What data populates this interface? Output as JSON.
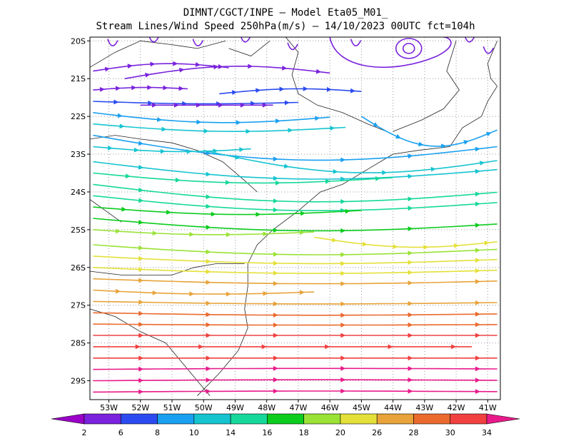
{
  "title": {
    "line1": "DIMNT/CGCT/INPE –  Model Eta05_M01_",
    "line2": "Stream Lines/Wind Speed 250hPa(m/s) –  14/10/2023 00UTC fct=104h"
  },
  "map": {
    "lon_range": [
      -53.6,
      -40.6
    ],
    "lat_range": [
      -29.5,
      -19.9
    ],
    "grid": "dotted",
    "x_ticks": [
      "53W",
      "52W",
      "51W",
      "50W",
      "49W",
      "48W",
      "47W",
      "46W",
      "45W",
      "44W",
      "43W",
      "42W",
      "41W"
    ],
    "y_ticks": [
      "20S",
      "21S",
      "22S",
      "23S",
      "24S",
      "25S",
      "26S",
      "27S",
      "28S",
      "29S"
    ]
  },
  "colorbar": {
    "labels": [
      "2",
      "6",
      "8",
      "10",
      "14",
      "16",
      "18",
      "20",
      "26",
      "28",
      "30",
      "34"
    ],
    "colors": [
      "#9a00c8",
      "#7a22dd",
      "#2b4bf0",
      "#1aa0f0",
      "#16c4d0",
      "#16d89a",
      "#0ccc1e",
      "#9ae236",
      "#e4e03a",
      "#e8a33a",
      "#ea6a2e",
      "#f04040",
      "#e81a8a"
    ]
  },
  "streamlines": [
    {
      "lat": -20.8,
      "lon0": -53.5,
      "lon1": -49.2,
      "bend": 0.15,
      "level": 1
    },
    {
      "lat": -21.0,
      "lon0": -52.5,
      "lon1": -46.0,
      "bend": 0.25,
      "level": 1
    },
    {
      "lat": -21.3,
      "lon0": -53.5,
      "lon1": -50.5,
      "bend": 0.05,
      "level": 1
    },
    {
      "lat": -21.4,
      "lon0": -49.5,
      "lon1": -45.0,
      "bend": 0.1,
      "level": 2
    },
    {
      "lat": -21.6,
      "lon0": -53.5,
      "lon1": -47.0,
      "bend": -0.05,
      "level": 2
    },
    {
      "lat": -21.7,
      "lon0": -52.0,
      "lon1": -47.8,
      "bend": 0.0,
      "level": 1
    },
    {
      "lat": -21.9,
      "lon0": -53.5,
      "lon1": -46.0,
      "bend": -0.2,
      "level": 3
    },
    {
      "lat": -22.0,
      "lon0": -45.0,
      "lon1": -40.7,
      "bend": -0.6,
      "level": 3
    },
    {
      "lat": -22.2,
      "lon0": -53.5,
      "lon1": -45.5,
      "bend": -0.15,
      "level": 4
    },
    {
      "lat": -22.5,
      "lon0": -53.5,
      "lon1": -40.7,
      "bend": -0.5,
      "level": 3
    },
    {
      "lat": -22.8,
      "lon0": -53.5,
      "lon1": -48.5,
      "bend": -0.1,
      "level": 4
    },
    {
      "lat": -22.9,
      "lon0": -50.0,
      "lon1": -40.7,
      "bend": -0.45,
      "level": 4
    },
    {
      "lat": -23.2,
      "lon0": -53.5,
      "lon1": -40.7,
      "bend": -0.35,
      "level": 4
    },
    {
      "lat": -23.5,
      "lon0": -53.5,
      "lon1": -44.0,
      "bend": -0.2,
      "level": 5
    },
    {
      "lat": -23.8,
      "lon0": -53.5,
      "lon1": -40.7,
      "bend": -0.35,
      "level": 5
    },
    {
      "lat": -24.1,
      "lon0": -53.5,
      "lon1": -40.7,
      "bend": -0.3,
      "level": 5
    },
    {
      "lat": -24.4,
      "lon0": -53.5,
      "lon1": -45.0,
      "bend": -0.15,
      "level": 6
    },
    {
      "lat": -24.7,
      "lon0": -53.5,
      "lon1": -40.7,
      "bend": -0.25,
      "level": 6
    },
    {
      "lat": -25.0,
      "lon0": -53.5,
      "lon1": -46.5,
      "bend": -0.1,
      "level": 7
    },
    {
      "lat": -25.2,
      "lon0": -46.5,
      "lon1": -40.7,
      "bend": -0.2,
      "level": 8
    },
    {
      "lat": -25.4,
      "lon0": -53.5,
      "lon1": -40.7,
      "bend": -0.2,
      "level": 7
    },
    {
      "lat": -25.7,
      "lon0": -53.5,
      "lon1": -40.7,
      "bend": -0.15,
      "level": 8
    },
    {
      "lat": -26.0,
      "lon0": -53.5,
      "lon1": -40.7,
      "bend": -0.12,
      "level": 8
    },
    {
      "lat": -26.3,
      "lon0": -53.5,
      "lon1": -40.7,
      "bend": -0.1,
      "level": 9
    },
    {
      "lat": -26.6,
      "lon0": -53.5,
      "lon1": -46.5,
      "bend": -0.08,
      "level": 9
    },
    {
      "lat": -26.9,
      "lon0": -53.5,
      "lon1": -40.7,
      "bend": -0.05,
      "level": 9
    },
    {
      "lat": -27.2,
      "lon0": -53.5,
      "lon1": -40.7,
      "bend": -0.05,
      "level": 10
    },
    {
      "lat": -27.5,
      "lon0": -53.5,
      "lon1": -40.7,
      "bend": -0.02,
      "level": 10
    },
    {
      "lat": -27.8,
      "lon0": -53.5,
      "lon1": -40.7,
      "bend": 0.0,
      "level": 11
    },
    {
      "lat": -28.1,
      "lon0": -53.5,
      "lon1": -41.5,
      "bend": 0.0,
      "level": 11
    },
    {
      "lat": -28.4,
      "lon0": -53.5,
      "lon1": -40.7,
      "bend": 0.0,
      "level": 11
    },
    {
      "lat": -28.7,
      "lon0": -53.5,
      "lon1": -40.7,
      "bend": 0.02,
      "level": 12
    },
    {
      "lat": -29.0,
      "lon0": -53.5,
      "lon1": -40.7,
      "bend": 0.02,
      "level": 12
    },
    {
      "lat": -29.3,
      "lon0": -53.5,
      "lon1": -40.7,
      "bend": 0.02,
      "level": 12
    }
  ]
}
